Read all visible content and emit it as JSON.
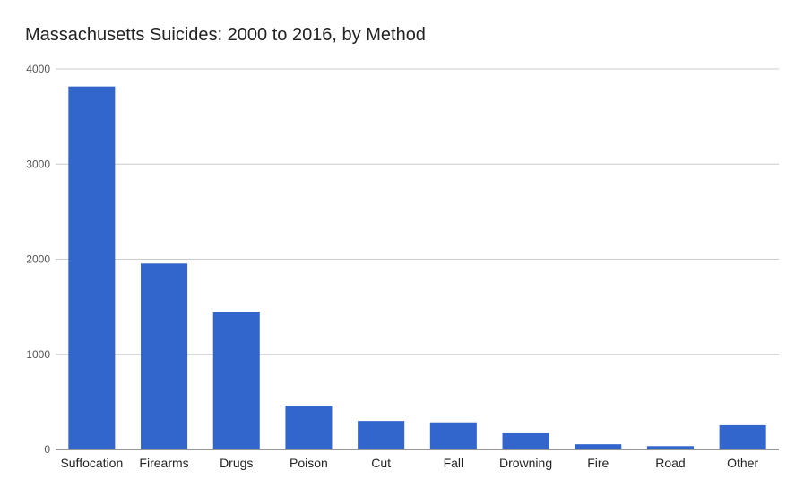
{
  "chart_data": {
    "type": "bar",
    "title": "Massachusetts Suicides: 2000 to 2016, by Method",
    "xlabel": "",
    "ylabel": "",
    "categories": [
      "Suffocation",
      "Firearms",
      "Drugs",
      "Poison",
      "Cut",
      "Fall",
      "Drowning",
      "Fire",
      "Road",
      "Other"
    ],
    "values": [
      3815,
      1955,
      1440,
      460,
      300,
      285,
      170,
      55,
      35,
      255
    ],
    "ylim": [
      0,
      4000
    ],
    "yticks": [
      "0",
      "1000",
      "2000",
      "3000",
      "4000"
    ],
    "grid": true,
    "legend": "none",
    "bar_color": "#3366cc"
  }
}
